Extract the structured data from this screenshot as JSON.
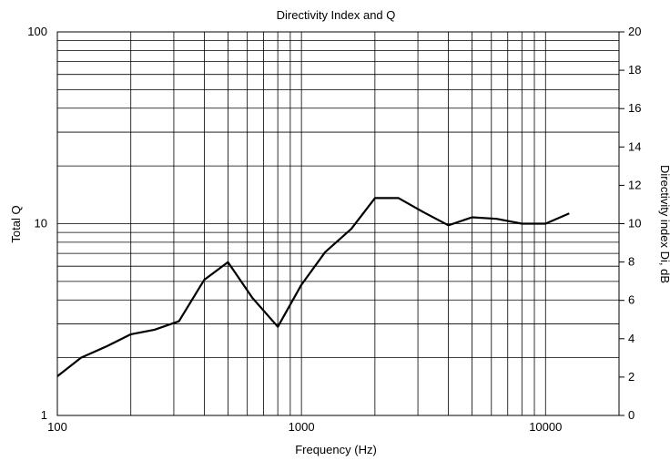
{
  "chart_data": {
    "type": "line",
    "title": "Directivity Index and Q",
    "xlabel": "Frequency (Hz)",
    "ylabel_left": "Total Q",
    "ylabel_right": "Directivity index Di, dB",
    "xscale": "log",
    "xlim": [
      100,
      20000
    ],
    "yscale_left": "log",
    "ylim_left": [
      1,
      100
    ],
    "ylim_right": [
      0,
      20
    ],
    "x_tick_labels": [
      "100",
      "1000",
      "10000"
    ],
    "y_left_tick_labels": [
      "1",
      "10",
      "100"
    ],
    "y_right_tick_labels": [
      "0",
      "2",
      "4",
      "6",
      "8",
      "10",
      "12",
      "14",
      "16",
      "18",
      "20"
    ],
    "grid": true,
    "line_color": "#000000",
    "series": [
      {
        "x": [
          100,
          125,
          160,
          200,
          250,
          315,
          400,
          500,
          630,
          800,
          1000,
          1250,
          1600,
          2000,
          2500,
          3150,
          4000,
          5000,
          6300,
          8000,
          10000,
          12500
        ],
        "y": [
          1.6,
          2.0,
          2.3,
          2.65,
          2.8,
          3.1,
          5.1,
          6.3,
          4.1,
          2.9,
          4.8,
          7.1,
          9.4,
          13.6,
          13.6,
          11.5,
          9.8,
          10.8,
          10.6,
          10.0,
          10.0,
          11.3
        ]
      }
    ]
  }
}
